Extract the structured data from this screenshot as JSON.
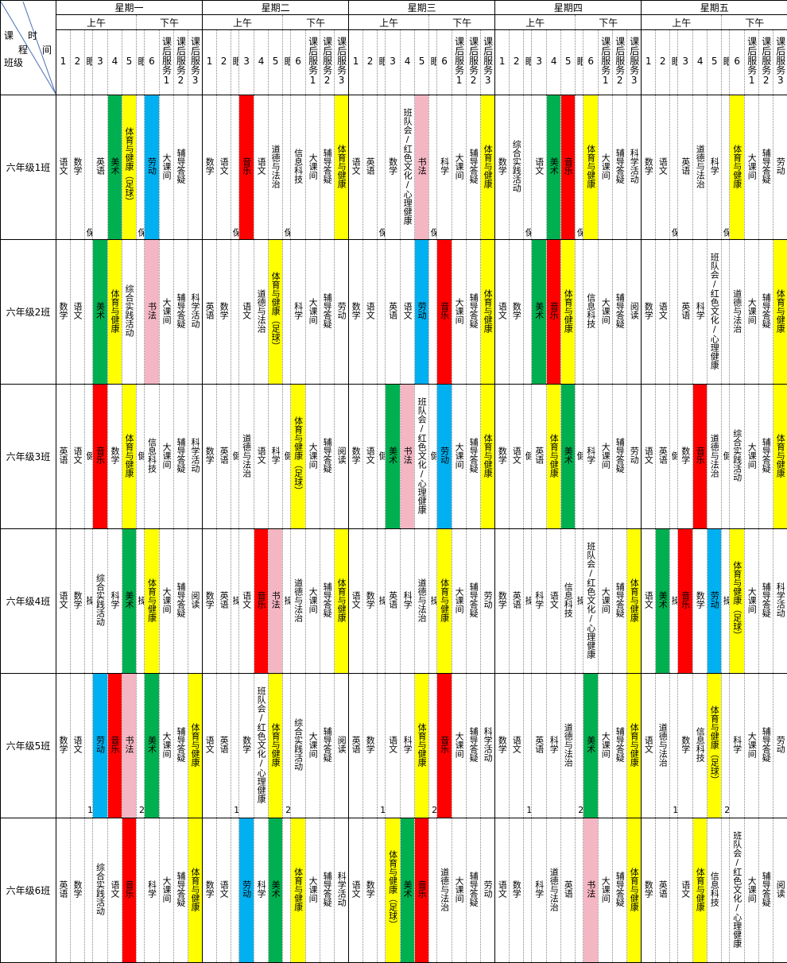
{
  "corner": {
    "course": [
      "课",
      "程"
    ],
    "time": [
      "时",
      "间"
    ],
    "class": "班级"
  },
  "days": [
    {
      "name": "星期一",
      "halves": [
        "上午",
        "下午"
      ]
    },
    {
      "name": "星期二",
      "halves": [
        "上午",
        "下午"
      ]
    },
    {
      "name": "星期三",
      "halves": [
        "上午",
        "下午"
      ]
    },
    {
      "name": "星期四",
      "halves": [
        "上午",
        "下午"
      ]
    },
    {
      "name": "星期五",
      "halves": [
        "上午",
        "下午"
      ]
    }
  ],
  "periods": [
    "1",
    "2",
    "眼",
    "3",
    "4",
    "5",
    "眼",
    "6",
    "课后服务1",
    "课后服务2",
    "课后服务3"
  ],
  "classes": [
    {
      "name": "六年级1班",
      "breaks": [
        "保",
        "保"
      ],
      "days": [
        [
          "语文",
          "数学",
          "英语",
          {
            "text": "美术",
            "color": "#00b050"
          },
          {
            "text": "体育与健康（足球）",
            "color": "#ffff00"
          },
          {
            "text": "劳动",
            "color": "#00b0f0"
          },
          "大课间",
          "辅导答疑",
          null
        ],
        [
          "数学",
          "语文",
          {
            "text": "音乐",
            "color": "#ff0000"
          },
          "语文",
          "道德与法治",
          "信息科技",
          "大课间",
          "辅导答疑",
          {
            "text": "体育与健康",
            "color": "#ffff00"
          }
        ],
        [
          "语文",
          "英语",
          "数学",
          "班队会/红色文化/心理健康",
          {
            "text": "书法",
            "color": "#f4b6c2"
          },
          "科学",
          "大课间",
          "辅导答疑",
          {
            "text": "体育与健康",
            "color": "#ffff00"
          }
        ],
        [
          "数学",
          "综合实践活动",
          "语文",
          {
            "text": "美术",
            "color": "#00b050"
          },
          {
            "text": "音乐",
            "color": "#ff0000"
          },
          {
            "text": "体育与健康",
            "color": "#ffff00"
          },
          "大课间",
          "辅导答疑",
          "科学活动"
        ],
        [
          "数学",
          "语文",
          "英语",
          "道德与法治",
          "科学",
          {
            "text": "体育与健康",
            "color": "#ffff00"
          },
          "大课间",
          "辅导答疑",
          "劳动"
        ]
      ]
    },
    {
      "name": "六年级2班",
      "breaks": [
        null,
        null
      ],
      "days": [
        [
          "数学",
          "语文",
          {
            "text": "美术",
            "color": "#00b050"
          },
          {
            "text": "体育与健康",
            "color": "#ffff00"
          },
          "综合实践活动",
          {
            "text": "书法",
            "color": "#f4b6c2"
          },
          "大课间",
          "辅导答疑",
          "科学活动"
        ],
        [
          "英语",
          "数学",
          "语文",
          "道德与法治",
          {
            "text": "体育与健康（足球）",
            "color": "#ffff00"
          },
          "科学",
          "大课间",
          "辅导答疑",
          "劳动"
        ],
        [
          "数学",
          "语文",
          "英语",
          "语文",
          {
            "text": "劳动",
            "color": "#00b0f0"
          },
          {
            "text": "音乐",
            "color": "#ff0000"
          },
          "大课间",
          "辅导答疑",
          {
            "text": "体育与健康",
            "color": "#ffff00"
          }
        ],
        [
          "语文",
          "数学",
          {
            "text": "美术",
            "color": "#00b050"
          },
          {
            "text": "音乐",
            "color": "#ff0000"
          },
          {
            "text": "体育与健康",
            "color": "#ffff00"
          },
          "信息科技",
          "大课间",
          "辅导答疑",
          "阅读"
        ],
        [
          "数学",
          "语文",
          "英语",
          "科学",
          "班队会/红色文化/心理健康",
          "道德与法治",
          "大课间",
          "辅导答疑",
          {
            "text": "体育与健康",
            "color": "#ffff00"
          }
        ]
      ]
    },
    {
      "name": "六年级3班",
      "breaks": [
        "健",
        "健"
      ],
      "days": [
        [
          "英语",
          "语文",
          {
            "text": "音乐",
            "color": "#ff0000"
          },
          "数学",
          {
            "text": "体育与健康",
            "color": "#ffff00"
          },
          "信息科技",
          "大课间",
          "辅导答疑",
          "科学活动"
        ],
        [
          "数学",
          "英语",
          "道德与法治",
          "语文",
          "科学",
          {
            "text": "体育与健康（足球）",
            "color": "#ffff00"
          },
          "大课间",
          "辅导答疑",
          "阅读"
        ],
        [
          "数学",
          "语文",
          {
            "text": "美术",
            "color": "#00b050"
          },
          {
            "text": "书法",
            "color": "#f4b6c2"
          },
          "班队会/红色文化/心理健康",
          {
            "text": "劳动",
            "color": "#00b0f0"
          },
          "大课间",
          "辅导答疑",
          {
            "text": "体育与健康",
            "color": "#ffff00"
          }
        ],
        [
          "数学",
          "语文",
          "英语",
          {
            "text": "体育与健康",
            "color": "#ffff00"
          },
          {
            "text": "美术",
            "color": "#00b050"
          },
          "科学",
          "大课间",
          "辅导答疑",
          "劳动"
        ],
        [
          "语文",
          "英语",
          "数学",
          {
            "text": "音乐",
            "color": "#ff0000"
          },
          "道德与法治",
          "综合实践活动",
          "大课间",
          "辅导答疑",
          {
            "text": "体育与健康",
            "color": "#ffff00"
          }
        ]
      ]
    },
    {
      "name": "六年级4班",
      "breaks": [
        "操",
        "操"
      ],
      "days": [
        [
          "语文",
          "数学",
          "综合实践活动",
          "科学",
          {
            "text": "美术",
            "color": "#00b050"
          },
          {
            "text": "体育与健康",
            "color": "#ffff00"
          },
          "大课间",
          "辅导答疑",
          "阅读"
        ],
        [
          "数学",
          "英语",
          "语文",
          {
            "text": "音乐",
            "color": "#ff0000"
          },
          {
            "text": "书法",
            "color": "#f4b6c2"
          },
          "道德与法治",
          "大课间",
          "辅导答疑",
          {
            "text": "体育与健康",
            "color": "#ffff00"
          }
        ],
        [
          "语文",
          "数学",
          "英语",
          "科学",
          "道德与法治",
          {
            "text": "体育与健康",
            "color": "#ffff00"
          },
          "大课间",
          "辅导答疑",
          "劳动"
        ],
        [
          "数学",
          "英语",
          "科学",
          "语文",
          "信息科技",
          "班队会/红色文化/心理健康",
          "大课间",
          "辅导答疑",
          {
            "text": "体育与健康",
            "color": "#ffff00"
          }
        ],
        [
          "语文",
          {
            "text": "美术",
            "color": "#00b050"
          },
          {
            "text": "音乐",
            "color": "#ff0000"
          },
          "数学",
          {
            "text": "劳动",
            "color": "#00b0f0"
          },
          {
            "text": "体育与健康（足球）",
            "color": "#ffff00"
          },
          "大课间",
          "辅导答疑",
          "科学活动"
        ]
      ]
    },
    {
      "name": "六年级5班",
      "breaks": [
        "1",
        "2"
      ],
      "days": [
        [
          "数学",
          "语文",
          {
            "text": "劳动",
            "color": "#00b0f0"
          },
          {
            "text": "音乐",
            "color": "#ff0000"
          },
          {
            "text": "书法",
            "color": "#f4b6c2"
          },
          {
            "text": "美术",
            "color": "#00b050"
          },
          "大课间",
          "辅导答疑",
          {
            "text": "体育与健康",
            "color": "#ffff00"
          }
        ],
        [
          "语文",
          "英语",
          "数学",
          "班队会/红色文化/心理健康",
          {
            "text": "体育与健康",
            "color": "#ffff00"
          },
          "综合实践活动",
          "大课间",
          "辅导答疑",
          "阅读"
        ],
        [
          "英语",
          "数学",
          "语文",
          "科学",
          {
            "text": "体育与健康",
            "color": "#ffff00"
          },
          {
            "text": "音乐",
            "color": "#ff0000"
          },
          "大课间",
          "辅导答疑",
          "科学活动"
        ],
        [
          "数学",
          "语文",
          "英语",
          "科学",
          "道德与法治",
          {
            "text": "美术",
            "color": "#00b050"
          },
          "大课间",
          "辅导答疑",
          {
            "text": "体育与健康",
            "color": "#ffff00"
          }
        ],
        [
          "语文",
          "道德与法治",
          "数学",
          "信息科技",
          {
            "text": "体育与健康（足球）",
            "color": "#ffff00"
          },
          "科学",
          "大课间",
          "辅导答疑",
          "劳动"
        ]
      ]
    },
    {
      "name": "六年级6班",
      "breaks": [
        null,
        null
      ],
      "days": [
        [
          "英语",
          "数学",
          "综合实践活动",
          "语文",
          {
            "text": "音乐",
            "color": "#ff0000"
          },
          "科学",
          "大课间",
          "辅导答疑",
          {
            "text": "体育与健康",
            "color": "#ffff00"
          }
        ],
        [
          "数学",
          "语文",
          {
            "text": "劳动",
            "color": "#00b0f0"
          },
          "科学",
          {
            "text": "美术",
            "color": "#00b050"
          },
          {
            "text": "体育与健康",
            "color": "#ffff00"
          },
          "大课间",
          "辅导答疑",
          "科学活动"
        ],
        [
          "语文",
          "数学",
          {
            "text": "体育与健康（足球）",
            "color": "#ffff00"
          },
          {
            "text": "美术",
            "color": "#00b050"
          },
          {
            "text": "音乐",
            "color": "#ff0000"
          },
          "道德与法治",
          "大课间",
          "辅导答疑",
          "劳动"
        ],
        [
          "语文",
          "数学",
          "科学",
          "道德与法治",
          "英语",
          {
            "text": "书法",
            "color": "#f4b6c2"
          },
          "大课间",
          "辅导答疑",
          {
            "text": "体育与健康",
            "color": "#ffff00"
          }
        ],
        [
          "数学",
          "英语",
          "语文",
          {
            "text": "体育与健康",
            "color": "#ffff00"
          },
          "信息科技",
          "班队会/红色文化/心理健康",
          "大课间",
          "辅导答疑",
          "阅读"
        ]
      ]
    }
  ]
}
